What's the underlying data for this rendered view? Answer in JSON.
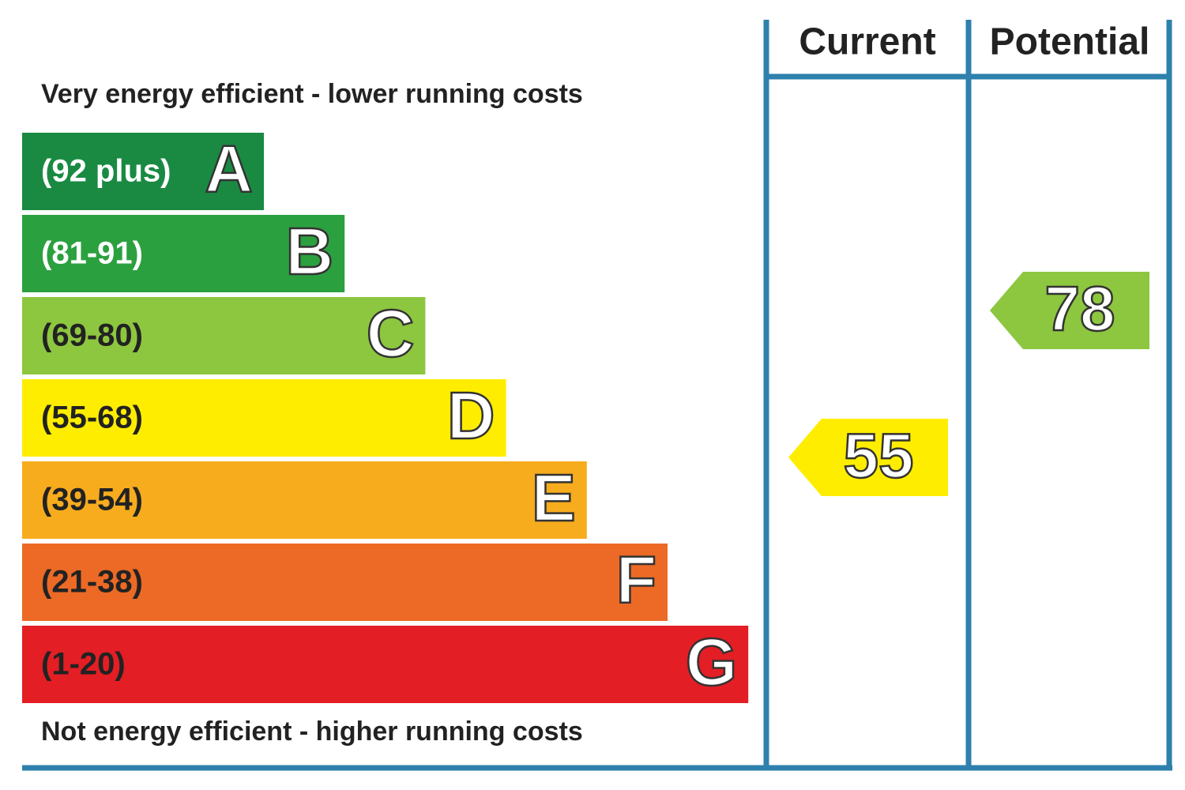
{
  "header": {
    "top_note": "Very energy efficient - lower running costs",
    "bottom_note": "Not energy efficient - higher running costs",
    "columns": [
      "Current",
      "Potential"
    ]
  },
  "bands": [
    {
      "range": "(92 plus)",
      "letter": "A",
      "color": "#1a8a43"
    },
    {
      "range": "(81-91)",
      "letter": "B",
      "color": "#2ba03f"
    },
    {
      "range": "(69-80)",
      "letter": "C",
      "color": "#8dc63f"
    },
    {
      "range": "(55-68)",
      "letter": "D",
      "color": "#ffed00"
    },
    {
      "range": "(39-54)",
      "letter": "E",
      "color": "#f7ac1e"
    },
    {
      "range": "(21-38)",
      "letter": "F",
      "color": "#ec6a25"
    },
    {
      "range": "(1-20)",
      "letter": "G",
      "color": "#e31e24"
    }
  ],
  "ratings": {
    "current": 55,
    "potential": 78
  }
}
